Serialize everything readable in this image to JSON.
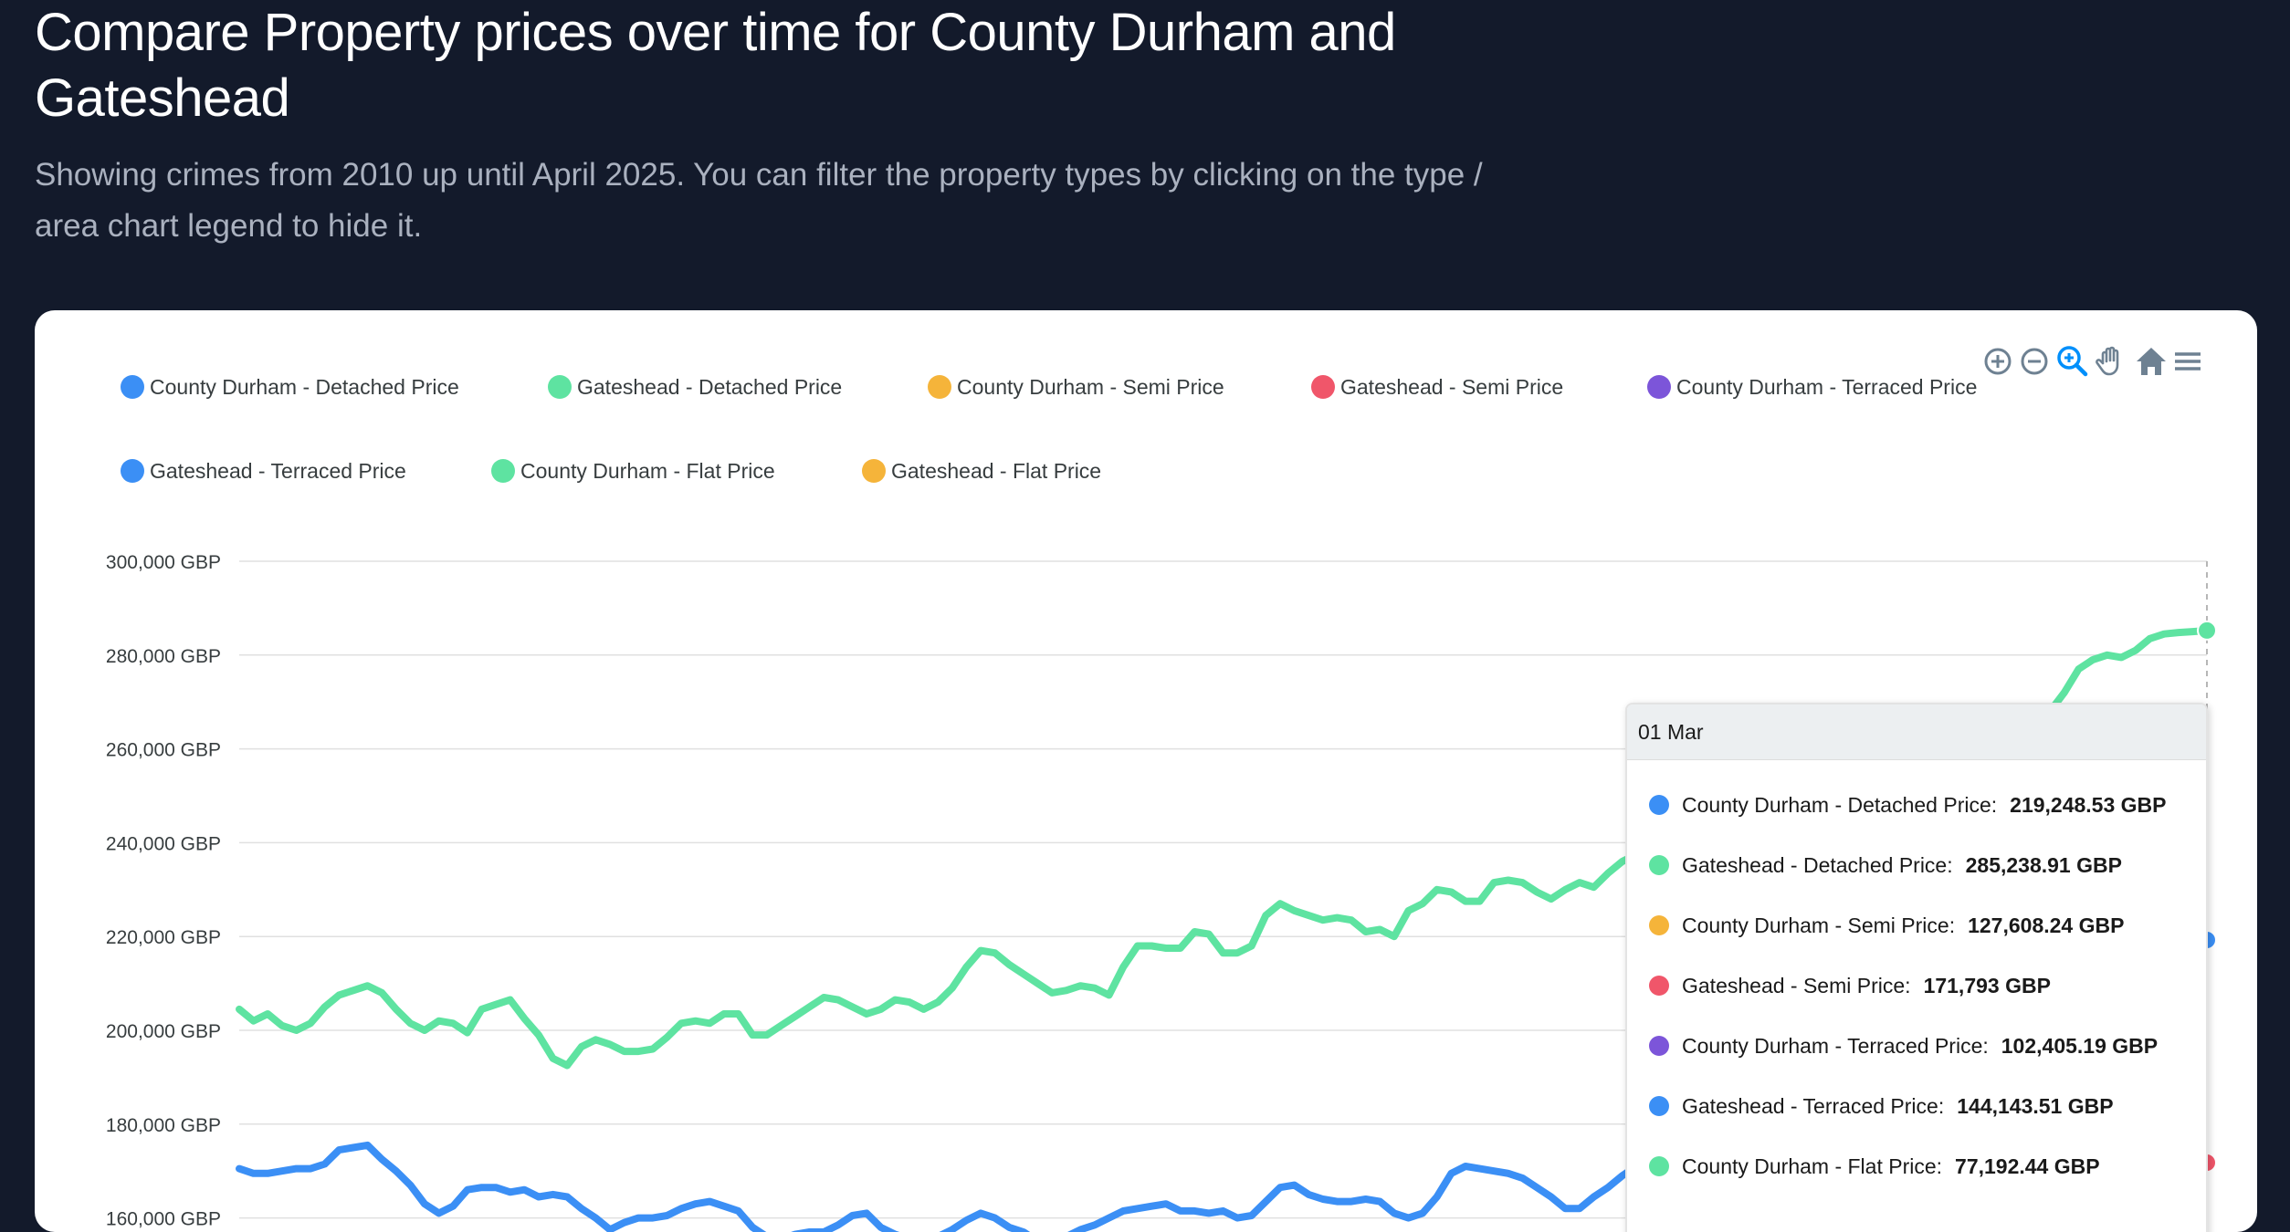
{
  "header": {
    "title": "Compare Property prices over time for County Durham and Gateshead",
    "subtitle": "Showing crimes from 2010 up until April 2025. You can filter the property types by clicking on the type / area chart legend to hide it."
  },
  "toolbar": {
    "icons": [
      "zoom-in-icon",
      "zoom-out-icon",
      "selection-zoom-icon",
      "pan-hand-icon",
      "reset-home-icon",
      "menu-icon"
    ],
    "colors": {
      "default": "#6e8192",
      "active": "#008ffb"
    }
  },
  "legend": [
    {
      "label": "County Durham - Detached Price",
      "color": "#3b8ff5"
    },
    {
      "label": "Gateshead - Detached Price",
      "color": "#5ee3a1"
    },
    {
      "label": "County Durham - Semi Price",
      "color": "#f5b43a"
    },
    {
      "label": "Gateshead - Semi Price",
      "color": "#f0566a"
    },
    {
      "label": "County Durham - Terraced Price",
      "color": "#7c55d9"
    },
    {
      "label": "Gateshead - Terraced Price",
      "color": "#3b8ff5"
    },
    {
      "label": "County Durham - Flat Price",
      "color": "#5ee3a1"
    },
    {
      "label": "Gateshead - Flat Price",
      "color": "#f5b43a"
    }
  ],
  "tooltip": {
    "date": "01 Mar",
    "rows": [
      {
        "label": "County Durham - Detached Price:",
        "value": "219,248.53 GBP",
        "color": "#3b8ff5"
      },
      {
        "label": "Gateshead - Detached Price:",
        "value": "285,238.91 GBP",
        "color": "#5ee3a1"
      },
      {
        "label": "County Durham - Semi Price:",
        "value": "127,608.24 GBP",
        "color": "#f5b43a"
      },
      {
        "label": "Gateshead - Semi Price:",
        "value": "171,793 GBP",
        "color": "#f0566a"
      },
      {
        "label": "County Durham - Terraced Price:",
        "value": "102,405.19 GBP",
        "color": "#7c55d9"
      },
      {
        "label": "Gateshead - Terraced Price:",
        "value": "144,143.51 GBP",
        "color": "#3b8ff5"
      },
      {
        "label": "County Durham - Flat Price:",
        "value": "77,192.44 GBP",
        "color": "#5ee3a1"
      }
    ]
  },
  "chart_data": {
    "type": "line",
    "ylim": [
      140000,
      300000
    ],
    "visible_ylim": [
      157000,
      300000
    ],
    "ytick_labels": [
      "300,000 GBP",
      "280,000 GBP",
      "260,000 GBP",
      "240,000 GBP",
      "220,000 GBP",
      "200,000 GBP",
      "180,000 GBP",
      "160,000 GBP"
    ],
    "ytick_values": [
      300000,
      280000,
      260000,
      240000,
      220000,
      200000,
      180000,
      160000
    ],
    "grid": true,
    "legend_position": "top",
    "series": [
      {
        "name": "Gateshead - Detached Price",
        "color": "#5ee3a1",
        "values": [
          204500,
          202000,
          203500,
          201000,
          200000,
          201500,
          205000,
          207500,
          208500,
          209500,
          208000,
          204500,
          201500,
          200000,
          202000,
          201500,
          199500,
          204500,
          205500,
          206500,
          202500,
          199000,
          194000,
          192500,
          196500,
          198000,
          197000,
          195500,
          195500,
          196000,
          198500,
          201500,
          202000,
          201500,
          203500,
          203500,
          199000,
          199000,
          201000,
          203000,
          205000,
          207000,
          206500,
          205000,
          203500,
          204500,
          206500,
          206000,
          204500,
          206000,
          209000,
          213500,
          217000,
          216500,
          214000,
          212000,
          210000,
          208000,
          208500,
          209500,
          209000,
          207500,
          213500,
          218000,
          218000,
          217500,
          217500,
          221000,
          220500,
          216500,
          216500,
          218000,
          224500,
          227000,
          225500,
          224500,
          223500,
          224000,
          223500,
          221000,
          221500,
          220000,
          225500,
          227000,
          230000,
          229500,
          227500,
          227500,
          231500,
          232000,
          231500,
          229500,
          228000,
          230000,
          231500,
          230500,
          233500,
          236000,
          237500,
          239000,
          240500,
          241500,
          238000,
          233500,
          231000,
          233000,
          236000,
          238000,
          241000,
          244000,
          246000,
          248000,
          250000,
          252000,
          253000,
          254000,
          255000,
          256000,
          257000,
          258000,
          259000,
          260000,
          260500,
          261500,
          262500,
          264000,
          266000,
          268000,
          272000,
          277000,
          279000,
          280000,
          279500,
          281000,
          283500,
          284500,
          284800,
          285000,
          285238.91
        ]
      },
      {
        "name": "County Durham - Detached Price",
        "color": "#3b8ff5",
        "values": [
          170500,
          169500,
          169500,
          170000,
          170500,
          170500,
          171500,
          174500,
          175000,
          175500,
          172500,
          170000,
          167000,
          163000,
          161000,
          162500,
          166000,
          166500,
          166500,
          165500,
          166000,
          164500,
          165000,
          164500,
          162000,
          160000,
          157500,
          159000,
          160000,
          160000,
          160500,
          162000,
          163000,
          163500,
          162500,
          161500,
          158000,
          156000,
          155500,
          156500,
          157000,
          157000,
          158500,
          160500,
          161000,
          158000,
          156500,
          155500,
          154500,
          156000,
          157500,
          159500,
          161000,
          160000,
          158000,
          157000,
          155000,
          155500,
          156000,
          157500,
          158500,
          160000,
          161500,
          162000,
          162500,
          163000,
          161500,
          161500,
          161000,
          161500,
          160000,
          160500,
          163500,
          166500,
          167000,
          165000,
          164000,
          163500,
          163500,
          164000,
          163500,
          161000,
          160000,
          161000,
          164500,
          169500,
          171000,
          170500,
          170000,
          169500,
          168500,
          166500,
          164500,
          162000,
          162000,
          164500,
          166500,
          169000,
          171000,
          170500,
          174000,
          173500,
          172000,
          168000,
          164500,
          162500,
          163500,
          167000,
          170000,
          172000,
          174000,
          176000,
          178000,
          180000,
          182000,
          184000,
          186000,
          188000,
          190000,
          192000,
          194000,
          196000,
          198000,
          200000,
          202000,
          204000,
          206000,
          208000,
          210000,
          212000,
          214000,
          215500,
          216500,
          217500,
          218000,
          218500,
          219000,
          219100,
          219248.53
        ]
      },
      {
        "name": "Gateshead - Semi Price",
        "color": "#f0566a",
        "values": [
          171793
        ]
      }
    ]
  }
}
